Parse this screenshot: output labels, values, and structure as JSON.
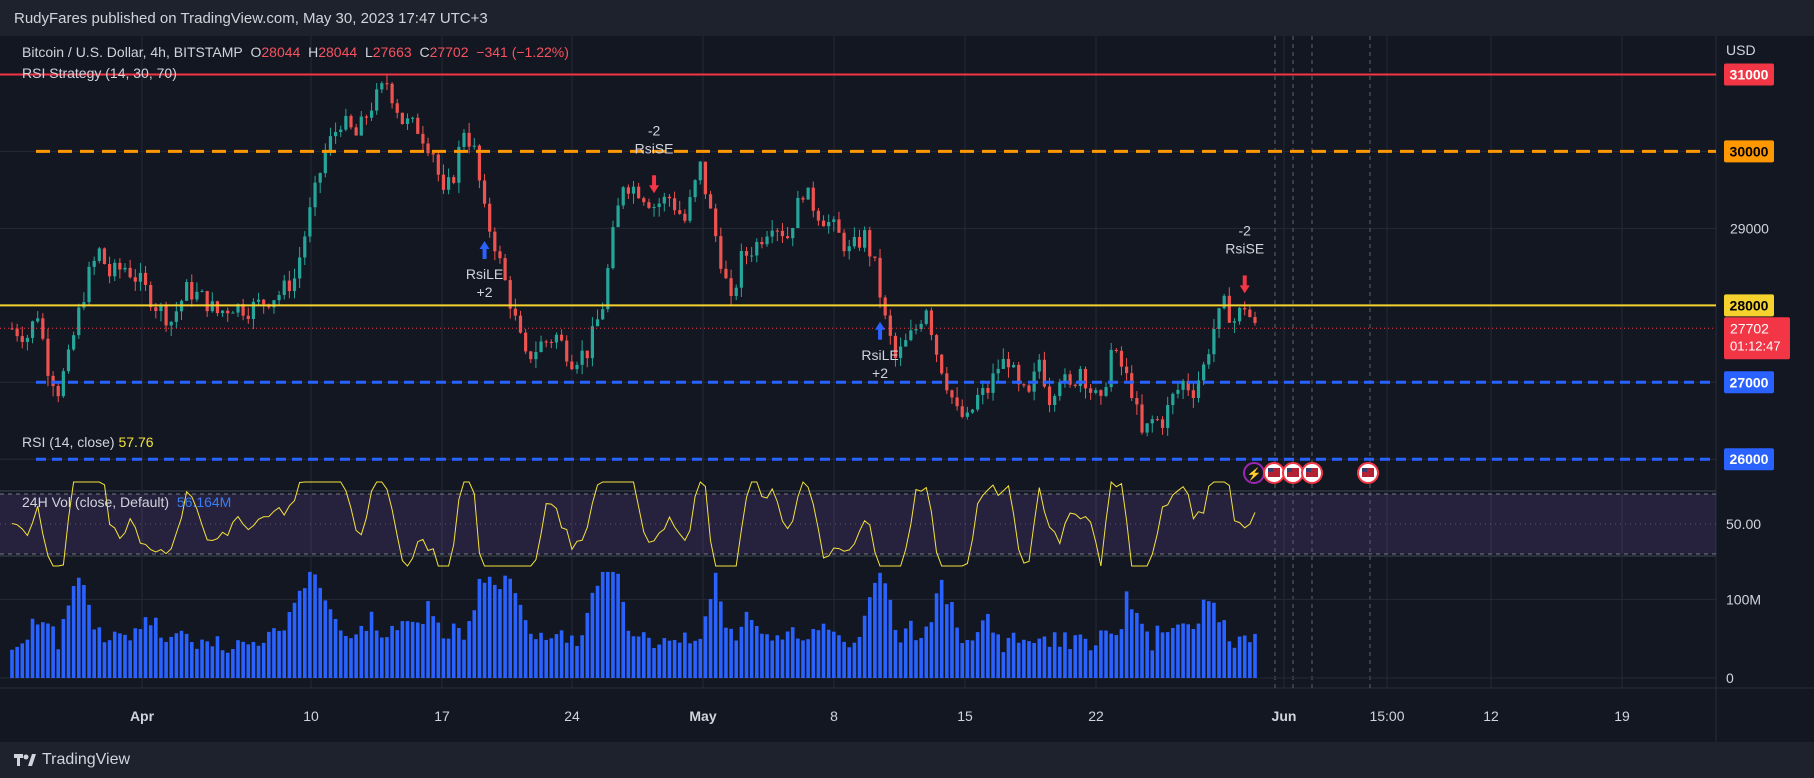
{
  "header": {
    "publisher_line": "RudyFares published on TradingView.com, May 30, 2023 17:47 UTC+3"
  },
  "footer": {
    "brand": "TradingView"
  },
  "legend": {
    "symbol": "Bitcoin / U.S. Dollar, 4h, BITSTAMP",
    "o_label": "O",
    "o_value": "28044",
    "h_label": "H",
    "h_value": "28044",
    "l_label": "L",
    "l_value": "27663",
    "c_label": "C",
    "c_value": "27702",
    "change": "−341 (−1.22%)",
    "strategy": "RSI Strategy (14, 30, 70)",
    "rsi_label": "RSI (14, close)",
    "rsi_value": "57.76",
    "vol_label": "24H Vol (close, Default)",
    "vol_value": "56.164M"
  },
  "axis": {
    "currency": "USD",
    "rsi_tick": "50.00",
    "vol_ticks": [
      "100M",
      "0"
    ],
    "price_countdown": "01:12:47"
  },
  "colors": {
    "up": "#26a69a",
    "down": "#ef5350",
    "bg": "#131722",
    "grid": "#262a36",
    "level_red": "#f23645",
    "level_orange": "#ff9800",
    "level_yellow": "#f5d22e",
    "level_blue": "#2962ff",
    "rsi": "#f5e23b",
    "volume": "#2962ff"
  },
  "chart_data": {
    "type": "candlestick",
    "title": "Bitcoin / U.S. Dollar, 4h, BITSTAMP",
    "price_range": [
      25600,
      31500
    ],
    "price_ticks": [
      26000,
      27000,
      28000,
      29000,
      30000,
      31000
    ],
    "x_ticks": [
      "Apr",
      "10",
      "17",
      "24",
      "May",
      "8",
      "15",
      "22",
      "Jun",
      "15:00",
      "12",
      "19"
    ],
    "key_levels": [
      {
        "price": 31000,
        "label": "31000",
        "style": "solid",
        "color": "#f23645"
      },
      {
        "price": 30000,
        "label": "30000",
        "style": "dashed",
        "color": "#ff9800"
      },
      {
        "price": 28000,
        "label": "28000",
        "style": "solid",
        "color": "#f5d22e"
      },
      {
        "price": 27000,
        "label": "27000",
        "style": "dashed",
        "color": "#2962ff"
      },
      {
        "price": 26000,
        "label": "26000",
        "style": "dashed",
        "color": "#2962ff"
      }
    ],
    "last_price": {
      "label": "27702",
      "value": 27702
    },
    "close_path": [
      [
        0,
        27700
      ],
      [
        3,
        27600
      ],
      [
        5,
        27900
      ],
      [
        7,
        27200
      ],
      [
        9,
        26900
      ],
      [
        11,
        27300
      ],
      [
        13,
        27900
      ],
      [
        15,
        28400
      ],
      [
        17,
        28700
      ],
      [
        19,
        28400
      ],
      [
        22,
        28500
      ],
      [
        25,
        28300
      ],
      [
        28,
        28000
      ],
      [
        31,
        27800
      ],
      [
        34,
        28200
      ],
      [
        37,
        28100
      ],
      [
        40,
        27900
      ],
      [
        43,
        28000
      ],
      [
        46,
        27950
      ],
      [
        49,
        28050
      ],
      [
        52,
        28150
      ],
      [
        55,
        28350
      ],
      [
        58,
        29200
      ],
      [
        61,
        30000
      ],
      [
        64,
        30400
      ],
      [
        67,
        30200
      ],
      [
        70,
        30600
      ],
      [
        73,
        30900
      ],
      [
        76,
        30400
      ],
      [
        79,
        30300
      ],
      [
        82,
        30000
      ],
      [
        84,
        29400
      ],
      [
        86,
        29700
      ],
      [
        88,
        30300
      ],
      [
        90,
        30000
      ],
      [
        92,
        29200
      ],
      [
        94,
        28800
      ],
      [
        96,
        28300
      ],
      [
        98,
        27800
      ],
      [
        100,
        27300
      ],
      [
        103,
        27500
      ],
      [
        106,
        27600
      ],
      [
        109,
        27300
      ],
      [
        112,
        27400
      ],
      [
        115,
        28000
      ],
      [
        117,
        28900
      ],
      [
        119,
        29600
      ],
      [
        122,
        29500
      ],
      [
        125,
        29300
      ],
      [
        128,
        29400
      ],
      [
        131,
        29100
      ],
      [
        134,
        29800
      ],
      [
        137,
        28900
      ],
      [
        140,
        28000
      ],
      [
        142,
        28600
      ],
      [
        145,
        28800
      ],
      [
        148,
        29100
      ],
      [
        151,
        28900
      ],
      [
        154,
        29500
      ],
      [
        157,
        29200
      ],
      [
        160,
        29000
      ],
      [
        163,
        28700
      ],
      [
        166,
        28900
      ],
      [
        168,
        28500
      ],
      [
        170,
        27800
      ],
      [
        172,
        27300
      ],
      [
        174,
        27500
      ],
      [
        176,
        27700
      ],
      [
        178,
        28000
      ],
      [
        180,
        27400
      ],
      [
        182,
        27000
      ],
      [
        184,
        26600
      ],
      [
        186,
        26500
      ],
      [
        188,
        26800
      ],
      [
        190,
        26900
      ],
      [
        192,
        27200
      ],
      [
        194,
        27300
      ],
      [
        196,
        26900
      ],
      [
        198,
        26800
      ],
      [
        200,
        27300
      ],
      [
        202,
        26800
      ],
      [
        204,
        27100
      ],
      [
        206,
        26900
      ],
      [
        208,
        27200
      ],
      [
        210,
        26900
      ],
      [
        212,
        26700
      ],
      [
        214,
        27400
      ],
      [
        216,
        27200
      ],
      [
        218,
        26900
      ],
      [
        220,
        26300
      ],
      [
        222,
        26500
      ],
      [
        224,
        26500
      ],
      [
        226,
        26800
      ],
      [
        228,
        27000
      ],
      [
        230,
        26900
      ],
      [
        232,
        27200
      ],
      [
        234,
        27700
      ],
      [
        236,
        28000
      ],
      [
        238,
        27800
      ],
      [
        240,
        28000
      ],
      [
        242,
        27702
      ]
    ],
    "annotations": [
      {
        "text_top": "RsiLE",
        "text_bottom": "+2",
        "index": 92,
        "kind": "long"
      },
      {
        "text_top": "-2",
        "text_bottom": "RsiSE",
        "index": 125,
        "kind": "short"
      },
      {
        "text_top": "RsiLE",
        "text_bottom": "+2",
        "index": 169,
        "kind": "long"
      },
      {
        "text_top": "-2",
        "text_bottom": "RsiSE",
        "index": 240,
        "kind": "short"
      }
    ],
    "rsi": {
      "value": 57.76,
      "upper": 70,
      "lower": 30,
      "mid": 50
    },
    "volume_note": "24H volume in millions"
  }
}
